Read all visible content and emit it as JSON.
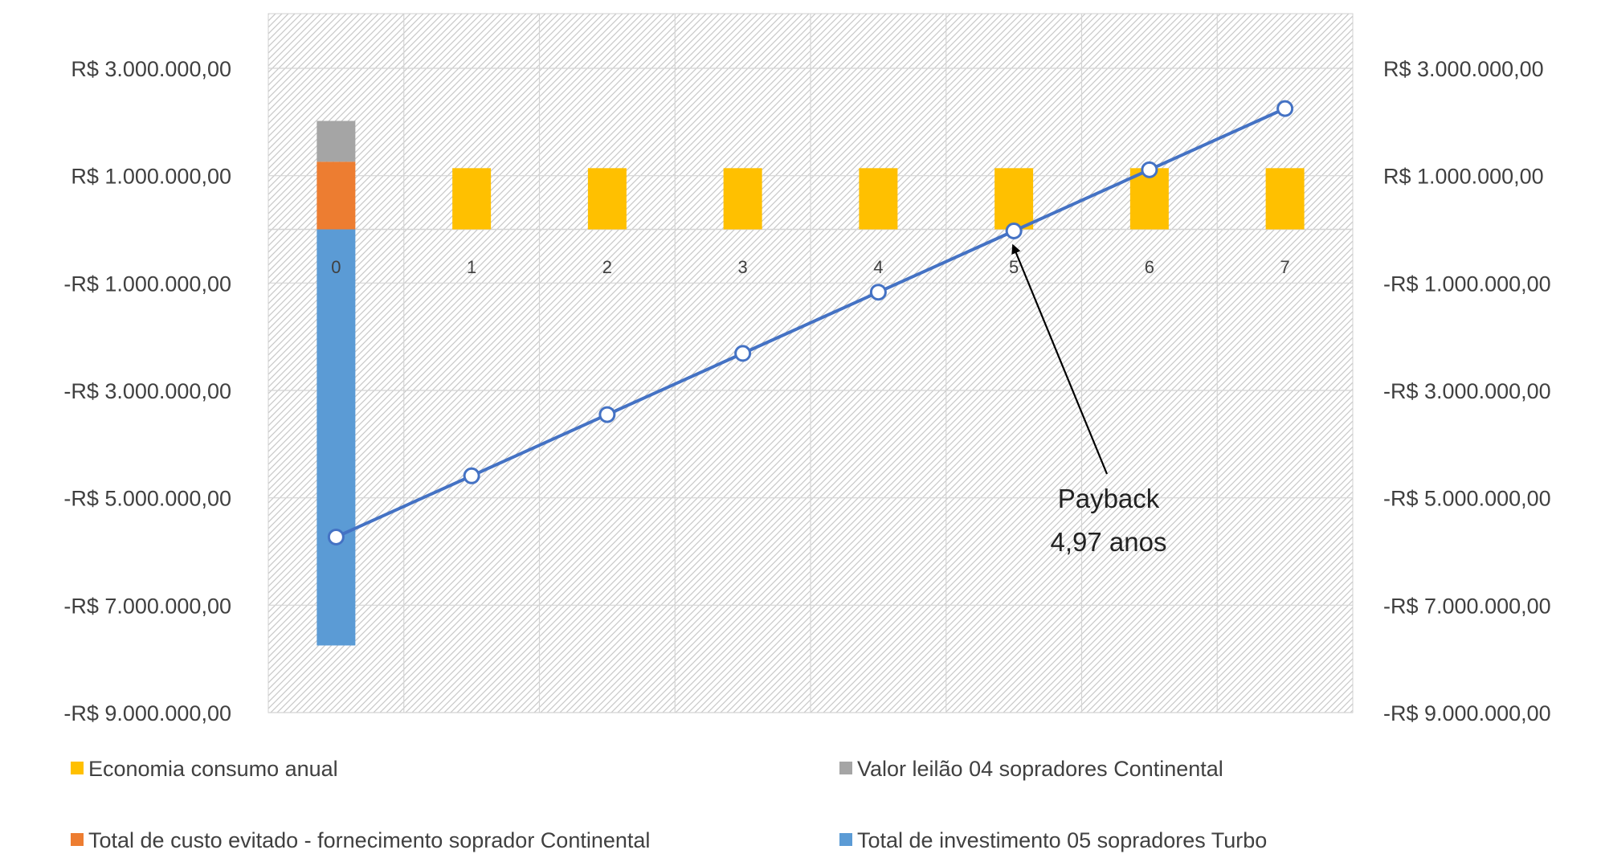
{
  "chart_data": {
    "type": "bar",
    "categories": [
      "0",
      "1",
      "2",
      "3",
      "4",
      "5",
      "6",
      "7"
    ],
    "stacked": true,
    "ylim": [
      -9000000,
      4000000
    ],
    "y_ticks": [
      3000000,
      1000000,
      -1000000,
      -3000000,
      -5000000,
      -7000000,
      -9000000
    ],
    "y_tick_labels": [
      "R$ 3.000.000,00",
      "R$ 1.000.000,00",
      "-R$ 1.000.000,00",
      "-R$ 3.000.000,00",
      "-R$ 5.000.000,00",
      "-R$ 7.000.000,00",
      "-R$ 9.000.000,00"
    ],
    "secondary_y_tick_labels": [
      "R$ 3.000.000,00",
      "R$ 1.000.000,00",
      "-R$ 1.000.000,00",
      "-R$ 3.000.000,00",
      "-R$ 5.000.000,00",
      "-R$ 7.000.000,00",
      "-R$ 9.000.000,00"
    ],
    "grid": true,
    "plot_background": "hatched",
    "series": [
      {
        "name": "Economia consumo anual",
        "color": "#FFC000",
        "kind": "bar",
        "values": [
          0,
          1140000,
          1140000,
          1140000,
          1140000,
          1140000,
          1140000,
          1140000
        ]
      },
      {
        "name": "Valor leilão 04 sopradores Continental",
        "color": "#A5A5A5",
        "kind": "bar",
        "values": [
          760000,
          0,
          0,
          0,
          0,
          0,
          0,
          0
        ]
      },
      {
        "name": "Total de custo evitado - fornecimento soprador Continental",
        "color": "#ED7D31",
        "kind": "bar",
        "values": [
          1260000,
          0,
          0,
          0,
          0,
          0,
          0,
          0
        ]
      },
      {
        "name": "Total de investimento 05 sopradores Turbo",
        "color": "#5B9BD5",
        "kind": "bar",
        "values": [
          -7750000,
          0,
          0,
          0,
          0,
          0,
          0,
          0
        ]
      },
      {
        "kind": "line",
        "color": "#4472C4",
        "x": [
          0,
          1,
          2,
          3,
          4,
          5,
          6,
          7
        ],
        "values": [
          -5730000,
          -4590000,
          -3450000,
          -2310000,
          -1170000,
          -30000,
          1110000,
          2250000
        ]
      }
    ],
    "annotations": [
      {
        "lines": [
          "Payback",
          "4,97 anos"
        ],
        "arrow_to_x": 4.97,
        "arrow_to_y": -30000
      }
    ],
    "legend_position": "bottom"
  }
}
